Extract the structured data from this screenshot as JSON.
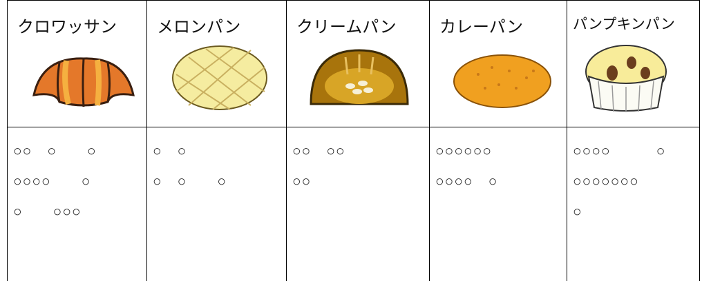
{
  "table": {
    "headers": [
      "クロワッサン",
      "メロンパン",
      "クリームパン",
      "カレーパン",
      "パンプキンパン"
    ],
    "cells": [
      [
        "○○　○　　○",
        "○○○○　　○",
        "○　　○○○"
      ],
      [
        "○　○",
        "○　○　　○"
      ],
      [
        "○○　○○",
        "○○"
      ],
      [
        "○○○○○○",
        "○○○○　○"
      ],
      [
        "○○○○　　　○",
        "○○○○○○○",
        "○"
      ]
    ]
  }
}
